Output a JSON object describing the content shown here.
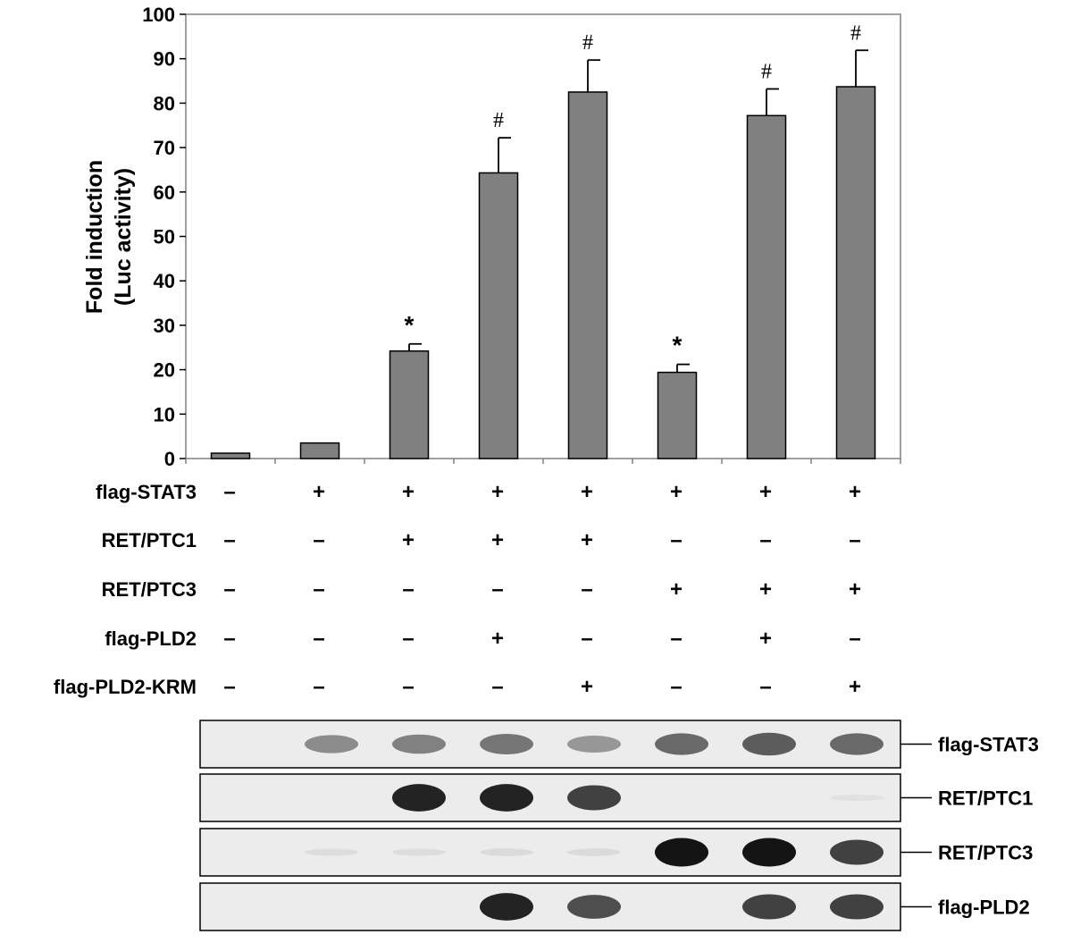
{
  "chart_data": {
    "type": "bar",
    "title": "",
    "xlabel": "",
    "ylabel": "Fold induction",
    "ylabel2": "(Luc activity)",
    "ylim": [
      0,
      100
    ],
    "yticks": [
      0,
      10,
      20,
      30,
      40,
      50,
      60,
      70,
      80,
      90,
      100
    ],
    "grid": false,
    "legend": "none",
    "values": [
      1.2,
      3.5,
      24.2,
      64.3,
      82.5,
      19.4,
      77.2,
      83.7
    ],
    "errors": [
      0,
      0,
      1.6,
      7.9,
      7.2,
      1.8,
      6.0,
      8.2
    ],
    "annotations": [
      "",
      "",
      "*",
      "#",
      "#",
      "*",
      "#",
      "#"
    ],
    "bar_color": "#808080"
  },
  "conditions": [
    {
      "label": "flag-STAT3",
      "signs": [
        "–",
        "+",
        "+",
        "+",
        "+",
        "+",
        "+",
        "+"
      ]
    },
    {
      "label": "RET/PTC1",
      "signs": [
        "–",
        "–",
        "+",
        "+",
        "+",
        "–",
        "–",
        "–"
      ]
    },
    {
      "label": "RET/PTC3",
      "signs": [
        "–",
        "–",
        "–",
        "–",
        "–",
        "+",
        "+",
        "+"
      ]
    },
    {
      "label": "flag-PLD2",
      "signs": [
        "–",
        "–",
        "–",
        "+",
        "–",
        "–",
        "+",
        "–"
      ]
    },
    {
      "label": "flag-PLD2-KRM",
      "signs": [
        "–",
        "–",
        "–",
        "–",
        "+",
        "–",
        "–",
        "+"
      ]
    }
  ],
  "blots": [
    {
      "label": "flag-STAT3",
      "intensity": [
        0,
        0.55,
        0.6,
        0.65,
        0.5,
        0.7,
        0.75,
        0.7
      ]
    },
    {
      "label": "RET/PTC1",
      "intensity": [
        0,
        0,
        0.95,
        0.95,
        0.85,
        0,
        0,
        0.05
      ]
    },
    {
      "label": "RET/PTC3",
      "intensity": [
        0,
        0.08,
        0.08,
        0.1,
        0.1,
        1.0,
        1.0,
        0.85
      ]
    },
    {
      "label": "flag-PLD2",
      "intensity": [
        0,
        0,
        0,
        0.95,
        0.8,
        0,
        0.85,
        0.85
      ]
    }
  ]
}
